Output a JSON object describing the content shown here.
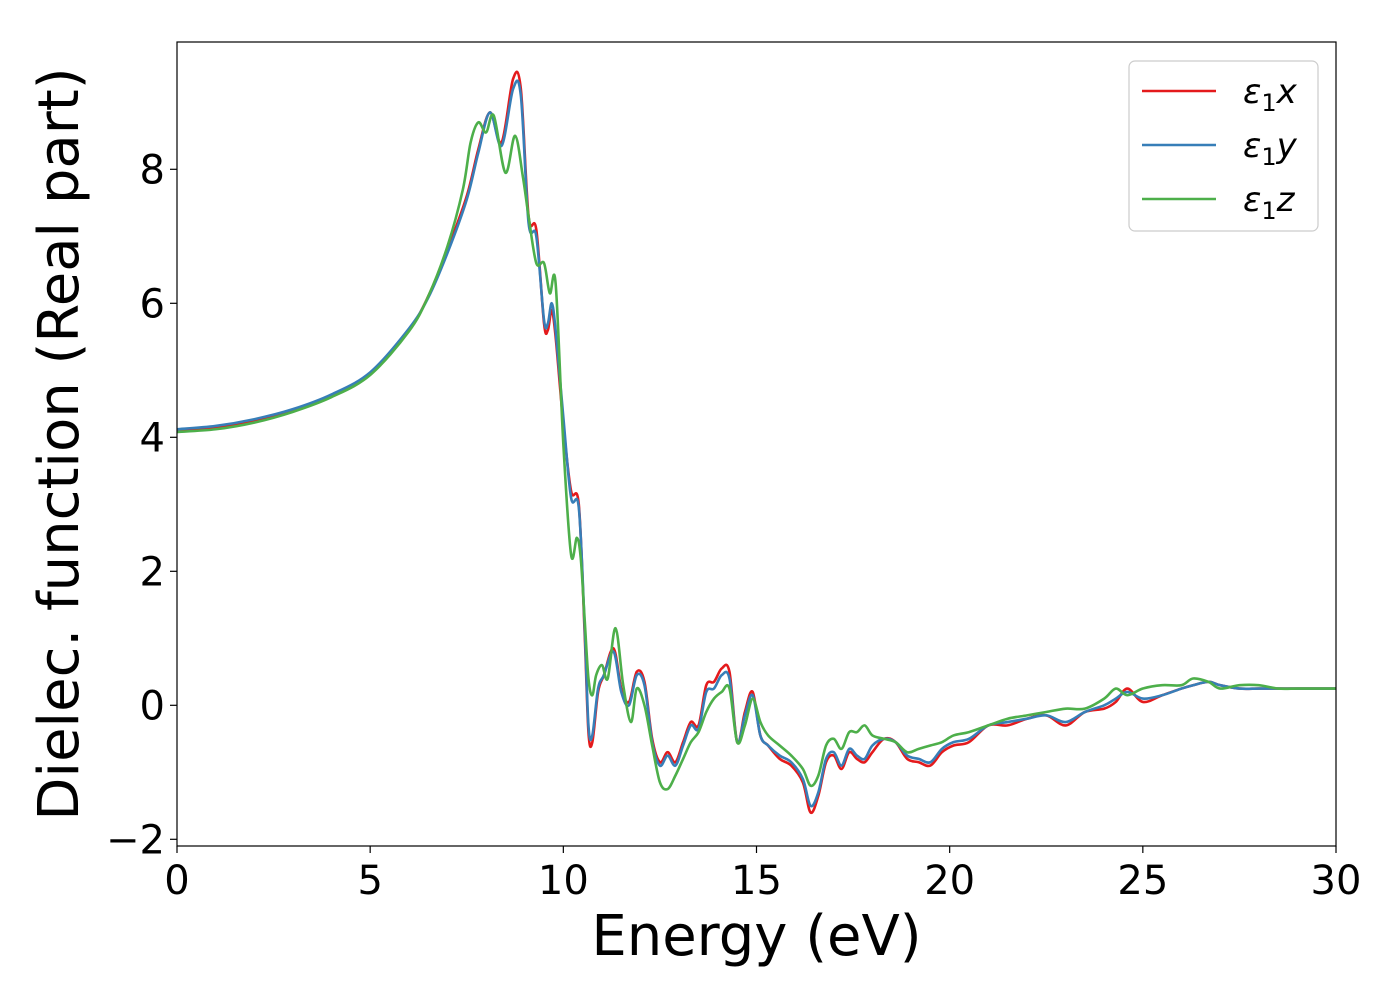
{
  "chart_data": {
    "type": "line",
    "title": "",
    "xlabel": "Energy (eV)",
    "ylabel": "Dielec. function (Real part)",
    "xlim": [
      0,
      30
    ],
    "ylim": [
      -2.1,
      9.9
    ],
    "xticks": [
      0,
      5,
      10,
      15,
      20,
      25,
      30
    ],
    "xtick_labels": [
      "0",
      "5",
      "10",
      "15",
      "20",
      "25",
      "30"
    ],
    "yticks": [
      -2,
      0,
      2,
      4,
      6,
      8
    ],
    "ytick_labels": [
      "−2",
      "0",
      "2",
      "4",
      "6",
      "8"
    ],
    "grid": false,
    "legend_position": "top-right",
    "series": [
      {
        "name": "ε1x",
        "name_symbol": "ε",
        "name_subscript": "1",
        "name_suffix": "x",
        "color": "#e41a1c",
        "x": [
          0,
          1,
          2,
          3,
          4,
          5,
          6,
          6.5,
          7,
          7.5,
          7.8,
          8.1,
          8.4,
          8.7,
          8.9,
          9.1,
          9.3,
          9.5,
          9.6,
          9.7,
          9.8,
          10.0,
          10.2,
          10.4,
          10.55,
          10.65,
          10.75,
          10.9,
          11.05,
          11.3,
          11.5,
          11.7,
          11.9,
          12.1,
          12.3,
          12.5,
          12.7,
          12.9,
          13.1,
          13.3,
          13.5,
          13.7,
          13.9,
          14.1,
          14.3,
          14.5,
          14.7,
          14.9,
          15.1,
          15.3,
          15.6,
          15.9,
          16.2,
          16.4,
          16.6,
          16.8,
          17.0,
          17.2,
          17.4,
          17.6,
          17.8,
          18.0,
          18.3,
          18.6,
          18.9,
          19.2,
          19.5,
          19.8,
          20.1,
          20.5,
          21.0,
          21.5,
          22.0,
          22.5,
          23.0,
          23.5,
          24.0,
          24.3,
          24.6,
          25.0,
          25.5,
          26.0,
          26.3,
          26.7,
          27.0,
          27.5,
          28.0,
          28.5,
          29.0,
          29.5,
          30.0
        ],
        "values": [
          4.1,
          4.15,
          4.25,
          4.4,
          4.62,
          4.95,
          5.6,
          6.1,
          6.8,
          7.6,
          8.3,
          8.85,
          8.4,
          9.35,
          9.2,
          7.3,
          7.1,
          5.7,
          5.6,
          5.9,
          5.5,
          4.2,
          3.2,
          3.0,
          1.1,
          -0.4,
          -0.55,
          0.2,
          0.45,
          0.85,
          0.25,
          0.05,
          0.5,
          0.35,
          -0.5,
          -0.85,
          -0.7,
          -0.85,
          -0.55,
          -0.25,
          -0.3,
          0.3,
          0.35,
          0.55,
          0.5,
          -0.55,
          -0.1,
          0.2,
          -0.45,
          -0.6,
          -0.8,
          -0.9,
          -1.15,
          -1.6,
          -1.35,
          -0.85,
          -0.75,
          -0.95,
          -0.7,
          -0.8,
          -0.85,
          -0.7,
          -0.5,
          -0.55,
          -0.8,
          -0.85,
          -0.9,
          -0.7,
          -0.6,
          -0.55,
          -0.3,
          -0.3,
          -0.2,
          -0.15,
          -0.3,
          -0.1,
          -0.05,
          0.05,
          0.25,
          0.05,
          0.15,
          0.25,
          0.3,
          0.35,
          0.3,
          0.25,
          0.25,
          0.25,
          0.25,
          0.25,
          0.25
        ]
      },
      {
        "name": "ε1y",
        "name_symbol": "ε",
        "name_subscript": "1",
        "name_suffix": "y",
        "color": "#377eb8",
        "x": [
          0,
          1,
          2,
          3,
          4,
          5,
          6,
          6.5,
          7,
          7.5,
          7.8,
          8.1,
          8.4,
          8.7,
          8.9,
          9.1,
          9.3,
          9.5,
          9.6,
          9.7,
          9.8,
          10.0,
          10.2,
          10.4,
          10.55,
          10.65,
          10.75,
          10.9,
          11.05,
          11.3,
          11.5,
          11.7,
          11.9,
          12.1,
          12.3,
          12.5,
          12.7,
          12.9,
          13.1,
          13.3,
          13.5,
          13.7,
          13.9,
          14.1,
          14.3,
          14.5,
          14.7,
          14.9,
          15.1,
          15.3,
          15.6,
          15.9,
          16.2,
          16.4,
          16.6,
          16.8,
          17.0,
          17.2,
          17.4,
          17.6,
          17.8,
          18.0,
          18.3,
          18.6,
          18.9,
          19.2,
          19.5,
          19.8,
          20.1,
          20.5,
          21.0,
          21.5,
          22.0,
          22.5,
          23.0,
          23.5,
          24.0,
          24.3,
          24.6,
          25.0,
          25.5,
          26.0,
          26.3,
          26.7,
          27.0,
          27.5,
          28.0,
          28.5,
          29.0,
          29.5,
          30.0
        ],
        "values": [
          4.12,
          4.17,
          4.27,
          4.42,
          4.64,
          4.97,
          5.62,
          6.08,
          6.75,
          7.55,
          8.25,
          8.85,
          8.35,
          9.2,
          9.1,
          7.2,
          7.0,
          5.75,
          5.7,
          6.0,
          5.6,
          4.3,
          3.1,
          2.95,
          1.2,
          -0.3,
          -0.45,
          0.25,
          0.45,
          0.8,
          0.2,
          0.0,
          0.45,
          0.3,
          -0.55,
          -0.9,
          -0.75,
          -0.9,
          -0.6,
          -0.3,
          -0.35,
          0.2,
          0.25,
          0.45,
          0.4,
          -0.55,
          -0.15,
          0.15,
          -0.45,
          -0.6,
          -0.75,
          -0.85,
          -1.1,
          -1.5,
          -1.3,
          -0.8,
          -0.7,
          -0.9,
          -0.65,
          -0.75,
          -0.8,
          -0.6,
          -0.5,
          -0.55,
          -0.75,
          -0.8,
          -0.85,
          -0.65,
          -0.55,
          -0.5,
          -0.3,
          -0.25,
          -0.2,
          -0.15,
          -0.25,
          -0.1,
          0.0,
          0.1,
          0.2,
          0.1,
          0.15,
          0.25,
          0.3,
          0.35,
          0.3,
          0.25,
          0.25,
          0.25,
          0.25,
          0.25,
          0.25
        ]
      },
      {
        "name": "ε1z",
        "name_symbol": "ε",
        "name_subscript": "1",
        "name_suffix": "z",
        "color": "#4daf4a",
        "x": [
          0,
          1,
          2,
          3,
          4,
          5,
          6,
          6.5,
          7,
          7.4,
          7.6,
          7.8,
          8.0,
          8.2,
          8.5,
          8.75,
          8.95,
          9.1,
          9.3,
          9.5,
          9.65,
          9.8,
          10.0,
          10.2,
          10.35,
          10.45,
          10.55,
          10.65,
          10.75,
          10.85,
          11.0,
          11.15,
          11.35,
          11.55,
          11.75,
          11.9,
          12.1,
          12.3,
          12.5,
          12.7,
          12.9,
          13.1,
          13.3,
          13.5,
          13.7,
          13.9,
          14.1,
          14.3,
          14.5,
          14.7,
          14.9,
          15.1,
          15.3,
          15.6,
          15.9,
          16.2,
          16.4,
          16.6,
          16.8,
          17.0,
          17.2,
          17.4,
          17.6,
          17.8,
          18.0,
          18.3,
          18.6,
          18.9,
          19.2,
          19.5,
          19.8,
          20.1,
          20.5,
          21.0,
          21.5,
          22.0,
          22.5,
          23.0,
          23.5,
          24.0,
          24.3,
          24.6,
          25.0,
          25.5,
          26.0,
          26.3,
          26.7,
          27.0,
          27.5,
          28.0,
          28.5,
          29.0,
          29.5,
          30.0
        ],
        "values": [
          4.08,
          4.12,
          4.22,
          4.38,
          4.6,
          4.93,
          5.58,
          6.1,
          6.85,
          7.7,
          8.4,
          8.7,
          8.55,
          8.8,
          7.95,
          8.5,
          7.9,
          7.3,
          6.6,
          6.6,
          6.15,
          6.3,
          3.9,
          2.25,
          2.5,
          2.2,
          1.3,
          0.4,
          0.15,
          0.45,
          0.6,
          0.4,
          1.15,
          0.3,
          -0.25,
          0.25,
          0.0,
          -0.6,
          -1.15,
          -1.25,
          -1.05,
          -0.8,
          -0.55,
          -0.4,
          -0.1,
          0.1,
          0.2,
          0.25,
          -0.55,
          -0.3,
          0.1,
          -0.25,
          -0.45,
          -0.6,
          -0.75,
          -0.95,
          -1.2,
          -1.05,
          -0.6,
          -0.5,
          -0.65,
          -0.4,
          -0.4,
          -0.3,
          -0.45,
          -0.5,
          -0.55,
          -0.7,
          -0.65,
          -0.6,
          -0.55,
          -0.45,
          -0.4,
          -0.3,
          -0.2,
          -0.15,
          -0.1,
          -0.05,
          -0.05,
          0.1,
          0.25,
          0.15,
          0.25,
          0.3,
          0.3,
          0.4,
          0.35,
          0.25,
          0.3,
          0.3,
          0.25,
          0.25,
          0.25,
          0.25
        ]
      }
    ]
  }
}
